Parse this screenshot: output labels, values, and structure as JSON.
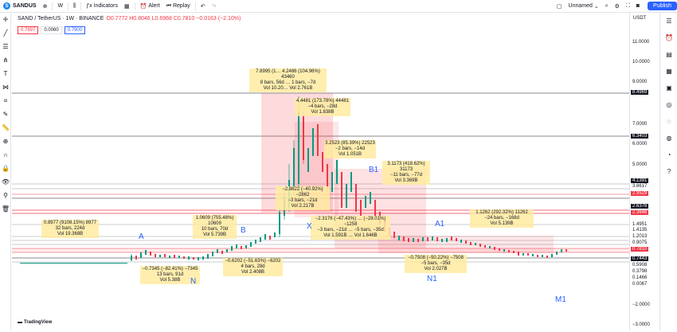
{
  "topbar": {
    "symbol": "SANDUS",
    "interval": "W",
    "indicators": "Indicators",
    "alert": "Alert",
    "replay": "Replay",
    "layout_name": "Unnamed",
    "publish": "Publish"
  },
  "legend": {
    "title": "SAND / TetherUS · 1W · BINANCE",
    "ohlc": "O0.7772 H0.8046 L0.6968 C0.7810 −0.0163 (−2.10%)",
    "sell": "0.7897",
    "spread": "0.0060",
    "buy": "0.7900"
  },
  "axis": {
    "currency": "USDT",
    "ticks": [
      "11.0000",
      "10.0000",
      "9.0000",
      "7.0000",
      "6.0000",
      "5.0000",
      "1.2013",
      "0.5908",
      "0.3798",
      "0.1466",
      "0.0067",
      "−2.0000",
      "−3.0000"
    ],
    "tags": [
      {
        "label": "8.4969",
        "color": "#131722"
      },
      {
        "label": "6.3403",
        "color": "#131722"
      },
      {
        "label": "4.1391",
        "color": "#131722"
      },
      {
        "label": "3.8617",
        "color": "#ffffff"
      },
      {
        "label": "2.9529",
        "color": "#f23645"
      },
      {
        "label": "2.6376",
        "color": "#131722"
      },
      {
        "label": "2.3646",
        "color": "#f23645"
      },
      {
        "label": "1.4951",
        "color": "#ffffff"
      },
      {
        "label": "1.4135",
        "color": "#ffffff"
      },
      {
        "label": "0.9075",
        "color": "#ffffff"
      },
      {
        "label": "0.7810",
        "color": "#f23645"
      },
      {
        "label": "0.7443",
        "color": "#131722"
      }
    ]
  },
  "annotations": [
    {
      "text": "7.8995 (1… 4.2486 (104.96%) 43460 | 8 bars, 56d … 1 bars, −7d | Vol 10.20… Vol 2.761B"
    },
    {
      "text": "4.4481 (173.78%) 44481 | −4 bars, −28d | Vol 1.838B"
    },
    {
      "text": "3.2523 (85.39%) 22523 | −2 bars, −14d | Vol 1.051B"
    },
    {
      "text": "3.1173 (418.62%) 31173 | −11 bars, −77d | Vol 3.369B"
    },
    {
      "text": "−2.8622 (−40.92%) −2862 | −3 bars, −21d | Vol 2.217B"
    },
    {
      "text": "−2.3176 (−47.43%) … (−28.01%) −1258 | −3 bars, −21d … −5 bars, −35d | Vol 1.591B … Vol 1.646B"
    },
    {
      "text": "0.8977 (9108.15%) 8977 | 32 bars, 224d | Vol 19.368B"
    },
    {
      "text": "1.0609 (755.48%) 10609 | 10 bars, 70d | Vol 5.739B"
    },
    {
      "text": "−0.6202 (−51.63%) −6202 | 4 bars, 28d | Vol 2.408B"
    },
    {
      "text": "−0.7345 (−82.41%) −7345 | 13 bars, 91d | Vol 5.38B"
    },
    {
      "text": "1.1262 (292.32%) 11262 | −24 bars, −168d | Vol 5.139B"
    },
    {
      "text": "−0.7508 (−50.22%) −7508 | −5 bars, −35d | Vol 2.027B"
    }
  ],
  "waves": [
    "A",
    "B",
    "N",
    "X",
    "B1",
    "A1",
    "N1",
    "M1"
  ],
  "brand": "TradingView"
}
